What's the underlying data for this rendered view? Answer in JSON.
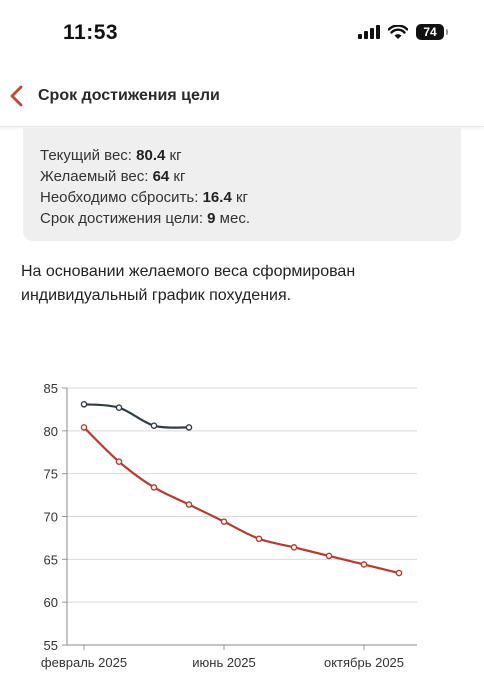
{
  "status_bar": {
    "time": "11:53",
    "battery": "74"
  },
  "nav": {
    "title": "Срок достижения цели"
  },
  "info": {
    "current_label": "Текущий вес: ",
    "current_value": "80.4",
    "current_unit": " кг",
    "target_label": "Желаемый вес: ",
    "target_value": "64",
    "target_unit": " кг",
    "lose_label": "Необходимо сбросить: ",
    "lose_value": "16.4",
    "lose_unit": " кг",
    "term_label": "Срок достижения цели: ",
    "term_value": "9",
    "term_unit": " мес."
  },
  "description": "На основании желаемого веса сформирован индивидуальный график похудения.",
  "colors": {
    "accent": "#b83a2e",
    "actual_line": "#2f3e46"
  },
  "chart_data": {
    "type": "line",
    "x_tick_labels": [
      "февраль 2025",
      "июнь 2025",
      "октябрь 2025"
    ],
    "ylim": [
      55,
      85
    ],
    "y_ticks": [
      55,
      60,
      65,
      70,
      75,
      80,
      85
    ],
    "grid": true,
    "series": [
      {
        "id": "actual",
        "color": "#2f3e46",
        "x": [
          0,
          1,
          2,
          3
        ],
        "y": [
          83.1,
          82.7,
          80.6,
          80.4
        ]
      },
      {
        "id": "plan",
        "color": "#b83a2e",
        "x": [
          0,
          1,
          2,
          3,
          4,
          5,
          6,
          7,
          8,
          9
        ],
        "y": [
          80.4,
          76.4,
          73.4,
          71.4,
          69.4,
          67.4,
          66.4,
          65.4,
          64.4,
          63.4
        ]
      }
    ]
  }
}
